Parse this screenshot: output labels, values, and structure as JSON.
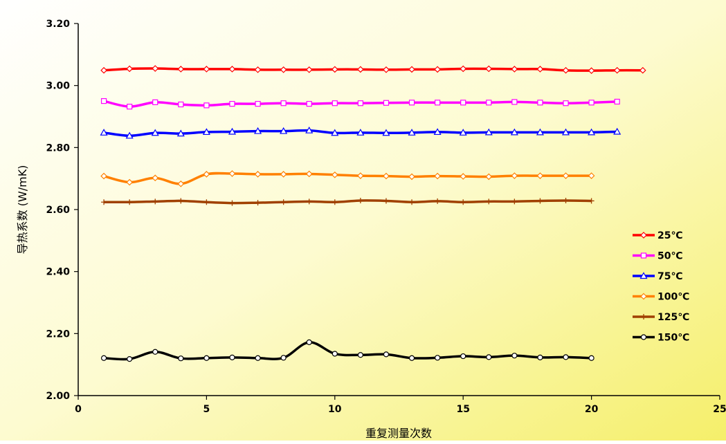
{
  "chart_data": {
    "type": "line",
    "title": "",
    "xlabel": "重复测量次数",
    "ylabel": "导热系数 (W/mK)",
    "xlim": [
      0,
      25
    ],
    "ylim": [
      2.0,
      3.2
    ],
    "xticks": [
      "0",
      "5",
      "10",
      "15",
      "20",
      "25"
    ],
    "yticks": [
      "2.00",
      "2.20",
      "2.40",
      "2.60",
      "2.80",
      "3.00",
      "3.20"
    ],
    "grid": false,
    "legend": "right",
    "series": [
      {
        "name": "25℃",
        "color": "#ff0000",
        "marker": "diamond",
        "x": [
          1,
          2,
          3,
          4,
          5,
          6,
          7,
          8,
          9,
          10,
          11,
          12,
          13,
          14,
          15,
          16,
          17,
          18,
          19,
          20,
          21,
          22
        ],
        "values": [
          3.049,
          3.054,
          3.055,
          3.053,
          3.053,
          3.053,
          3.051,
          3.051,
          3.051,
          3.052,
          3.052,
          3.051,
          3.052,
          3.052,
          3.054,
          3.054,
          3.053,
          3.053,
          3.049,
          3.048,
          3.049,
          3.049
        ]
      },
      {
        "name": "50℃",
        "color": "#ff00ff",
        "marker": "square",
        "x": [
          1,
          2,
          3,
          4,
          5,
          6,
          7,
          8,
          9,
          10,
          11,
          12,
          13,
          14,
          15,
          16,
          17,
          18,
          19,
          20,
          21
        ],
        "values": [
          2.95,
          2.932,
          2.946,
          2.939,
          2.936,
          2.941,
          2.941,
          2.943,
          2.941,
          2.943,
          2.943,
          2.944,
          2.945,
          2.945,
          2.945,
          2.945,
          2.947,
          2.945,
          2.943,
          2.945,
          2.948
        ]
      },
      {
        "name": "75℃",
        "color": "#0000ff",
        "marker": "triangle",
        "x": [
          1,
          2,
          3,
          4,
          5,
          6,
          7,
          8,
          9,
          10,
          11,
          12,
          13,
          14,
          15,
          16,
          17,
          18,
          19,
          20,
          21
        ],
        "values": [
          2.848,
          2.838,
          2.847,
          2.845,
          2.85,
          2.851,
          2.853,
          2.853,
          2.855,
          2.847,
          2.848,
          2.847,
          2.848,
          2.85,
          2.848,
          2.849,
          2.849,
          2.849,
          2.849,
          2.849,
          2.851
        ]
      },
      {
        "name": "100℃",
        "color": "#ff8000",
        "marker": "diamond",
        "x": [
          1,
          2,
          3,
          4,
          5,
          6,
          7,
          8,
          9,
          10,
          11,
          12,
          13,
          14,
          15,
          16,
          17,
          18,
          19,
          20
        ],
        "values": [
          2.708,
          2.688,
          2.702,
          2.683,
          2.714,
          2.716,
          2.714,
          2.714,
          2.715,
          2.712,
          2.709,
          2.708,
          2.706,
          2.708,
          2.707,
          2.706,
          2.709,
          2.709,
          2.709,
          2.709
        ]
      },
      {
        "name": "125℃",
        "color": "#a04000",
        "marker": "plus",
        "x": [
          1,
          2,
          3,
          4,
          5,
          6,
          7,
          8,
          9,
          10,
          11,
          12,
          13,
          14,
          15,
          16,
          17,
          18,
          19,
          20
        ],
        "values": [
          2.624,
          2.624,
          2.626,
          2.628,
          2.624,
          2.621,
          2.622,
          2.624,
          2.626,
          2.624,
          2.629,
          2.628,
          2.624,
          2.627,
          2.624,
          2.626,
          2.626,
          2.628,
          2.629,
          2.628
        ]
      },
      {
        "name": "150℃",
        "color": "#000000",
        "marker": "circle",
        "x": [
          1,
          2,
          3,
          4,
          5,
          6,
          7,
          8,
          9,
          10,
          11,
          12,
          13,
          14,
          15,
          16,
          17,
          18,
          19,
          20
        ],
        "values": [
          2.121,
          2.118,
          2.141,
          2.12,
          2.121,
          2.123,
          2.121,
          2.122,
          2.172,
          2.135,
          2.131,
          2.133,
          2.121,
          2.122,
          2.127,
          2.124,
          2.129,
          2.123,
          2.124,
          2.121
        ]
      }
    ]
  }
}
